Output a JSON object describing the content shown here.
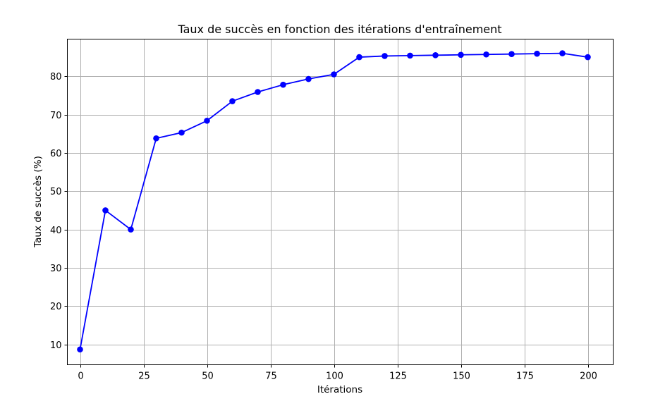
{
  "chart_data": {
    "type": "line",
    "title": "Taux de succès en fonction des itérations d'entraînement",
    "xlabel": "Itérations",
    "ylabel": "Taux de succès (%)",
    "xlim": [
      -5,
      210
    ],
    "ylim": [
      4.7,
      89.7
    ],
    "xticks": [
      0,
      25,
      50,
      75,
      100,
      125,
      150,
      175,
      200
    ],
    "yticks": [
      10,
      20,
      30,
      40,
      50,
      60,
      70,
      80
    ],
    "grid": true,
    "legend": "none",
    "series": [
      {
        "color": "#0000ff",
        "marker": "circle",
        "x": [
          0,
          10,
          20,
          30,
          40,
          50,
          60,
          70,
          80,
          90,
          100,
          110,
          120,
          130,
          140,
          150,
          160,
          170,
          180,
          190,
          200
        ],
        "values": [
          8.7,
          45.0,
          40.0,
          63.8,
          65.3,
          68.4,
          73.5,
          75.9,
          77.8,
          79.3,
          80.5,
          85.0,
          85.3,
          85.4,
          85.5,
          85.6,
          85.7,
          85.8,
          85.9,
          86.0,
          85.0
        ]
      }
    ]
  }
}
